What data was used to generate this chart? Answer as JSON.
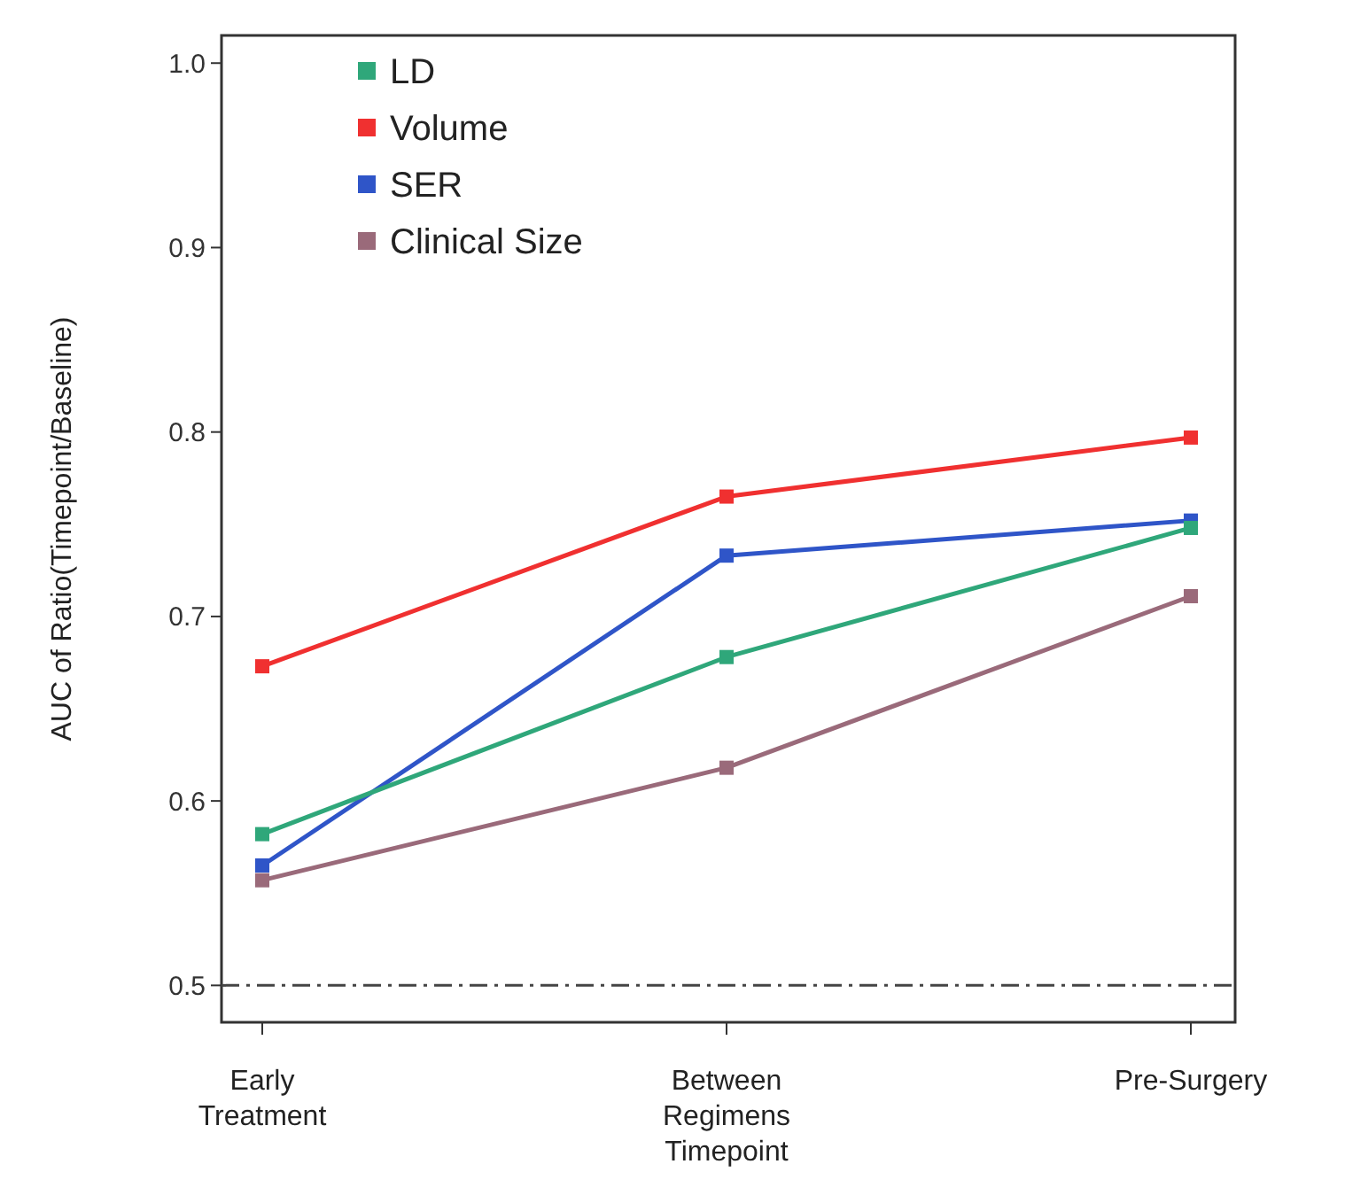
{
  "chart_data": {
    "type": "line",
    "ylabel": "AUC of Ratio(Timepoint/Baseline)",
    "categories": [
      "Early\nTreatment",
      "Between\nRegimens\nTimepoint",
      "Pre-Surgery"
    ],
    "series": [
      {
        "name": "LD",
        "color": "#2fa77a",
        "values": [
          0.582,
          0.678,
          0.748
        ]
      },
      {
        "name": "Volume",
        "color": "#f03030",
        "values": [
          0.673,
          0.765,
          0.797
        ]
      },
      {
        "name": "SER",
        "color": "#2f55c8",
        "values": [
          0.565,
          0.733,
          0.752
        ]
      },
      {
        "name": "Clinical Size",
        "color": "#9a6a7a",
        "values": [
          0.557,
          0.618,
          0.711
        ]
      }
    ],
    "ylim": [
      0.48,
      1.015
    ],
    "yticks": [
      0.5,
      0.6,
      0.7,
      0.8,
      0.9,
      {
        "value": 1,
        "label": "1.0"
      }
    ],
    "ref_lines": [
      {
        "axis": "y",
        "value": 0.5,
        "line_style": "dashdot",
        "color": "#444444"
      }
    ],
    "legend": "top left",
    "marker": "square",
    "line_style": "solid",
    "grid": false
  }
}
